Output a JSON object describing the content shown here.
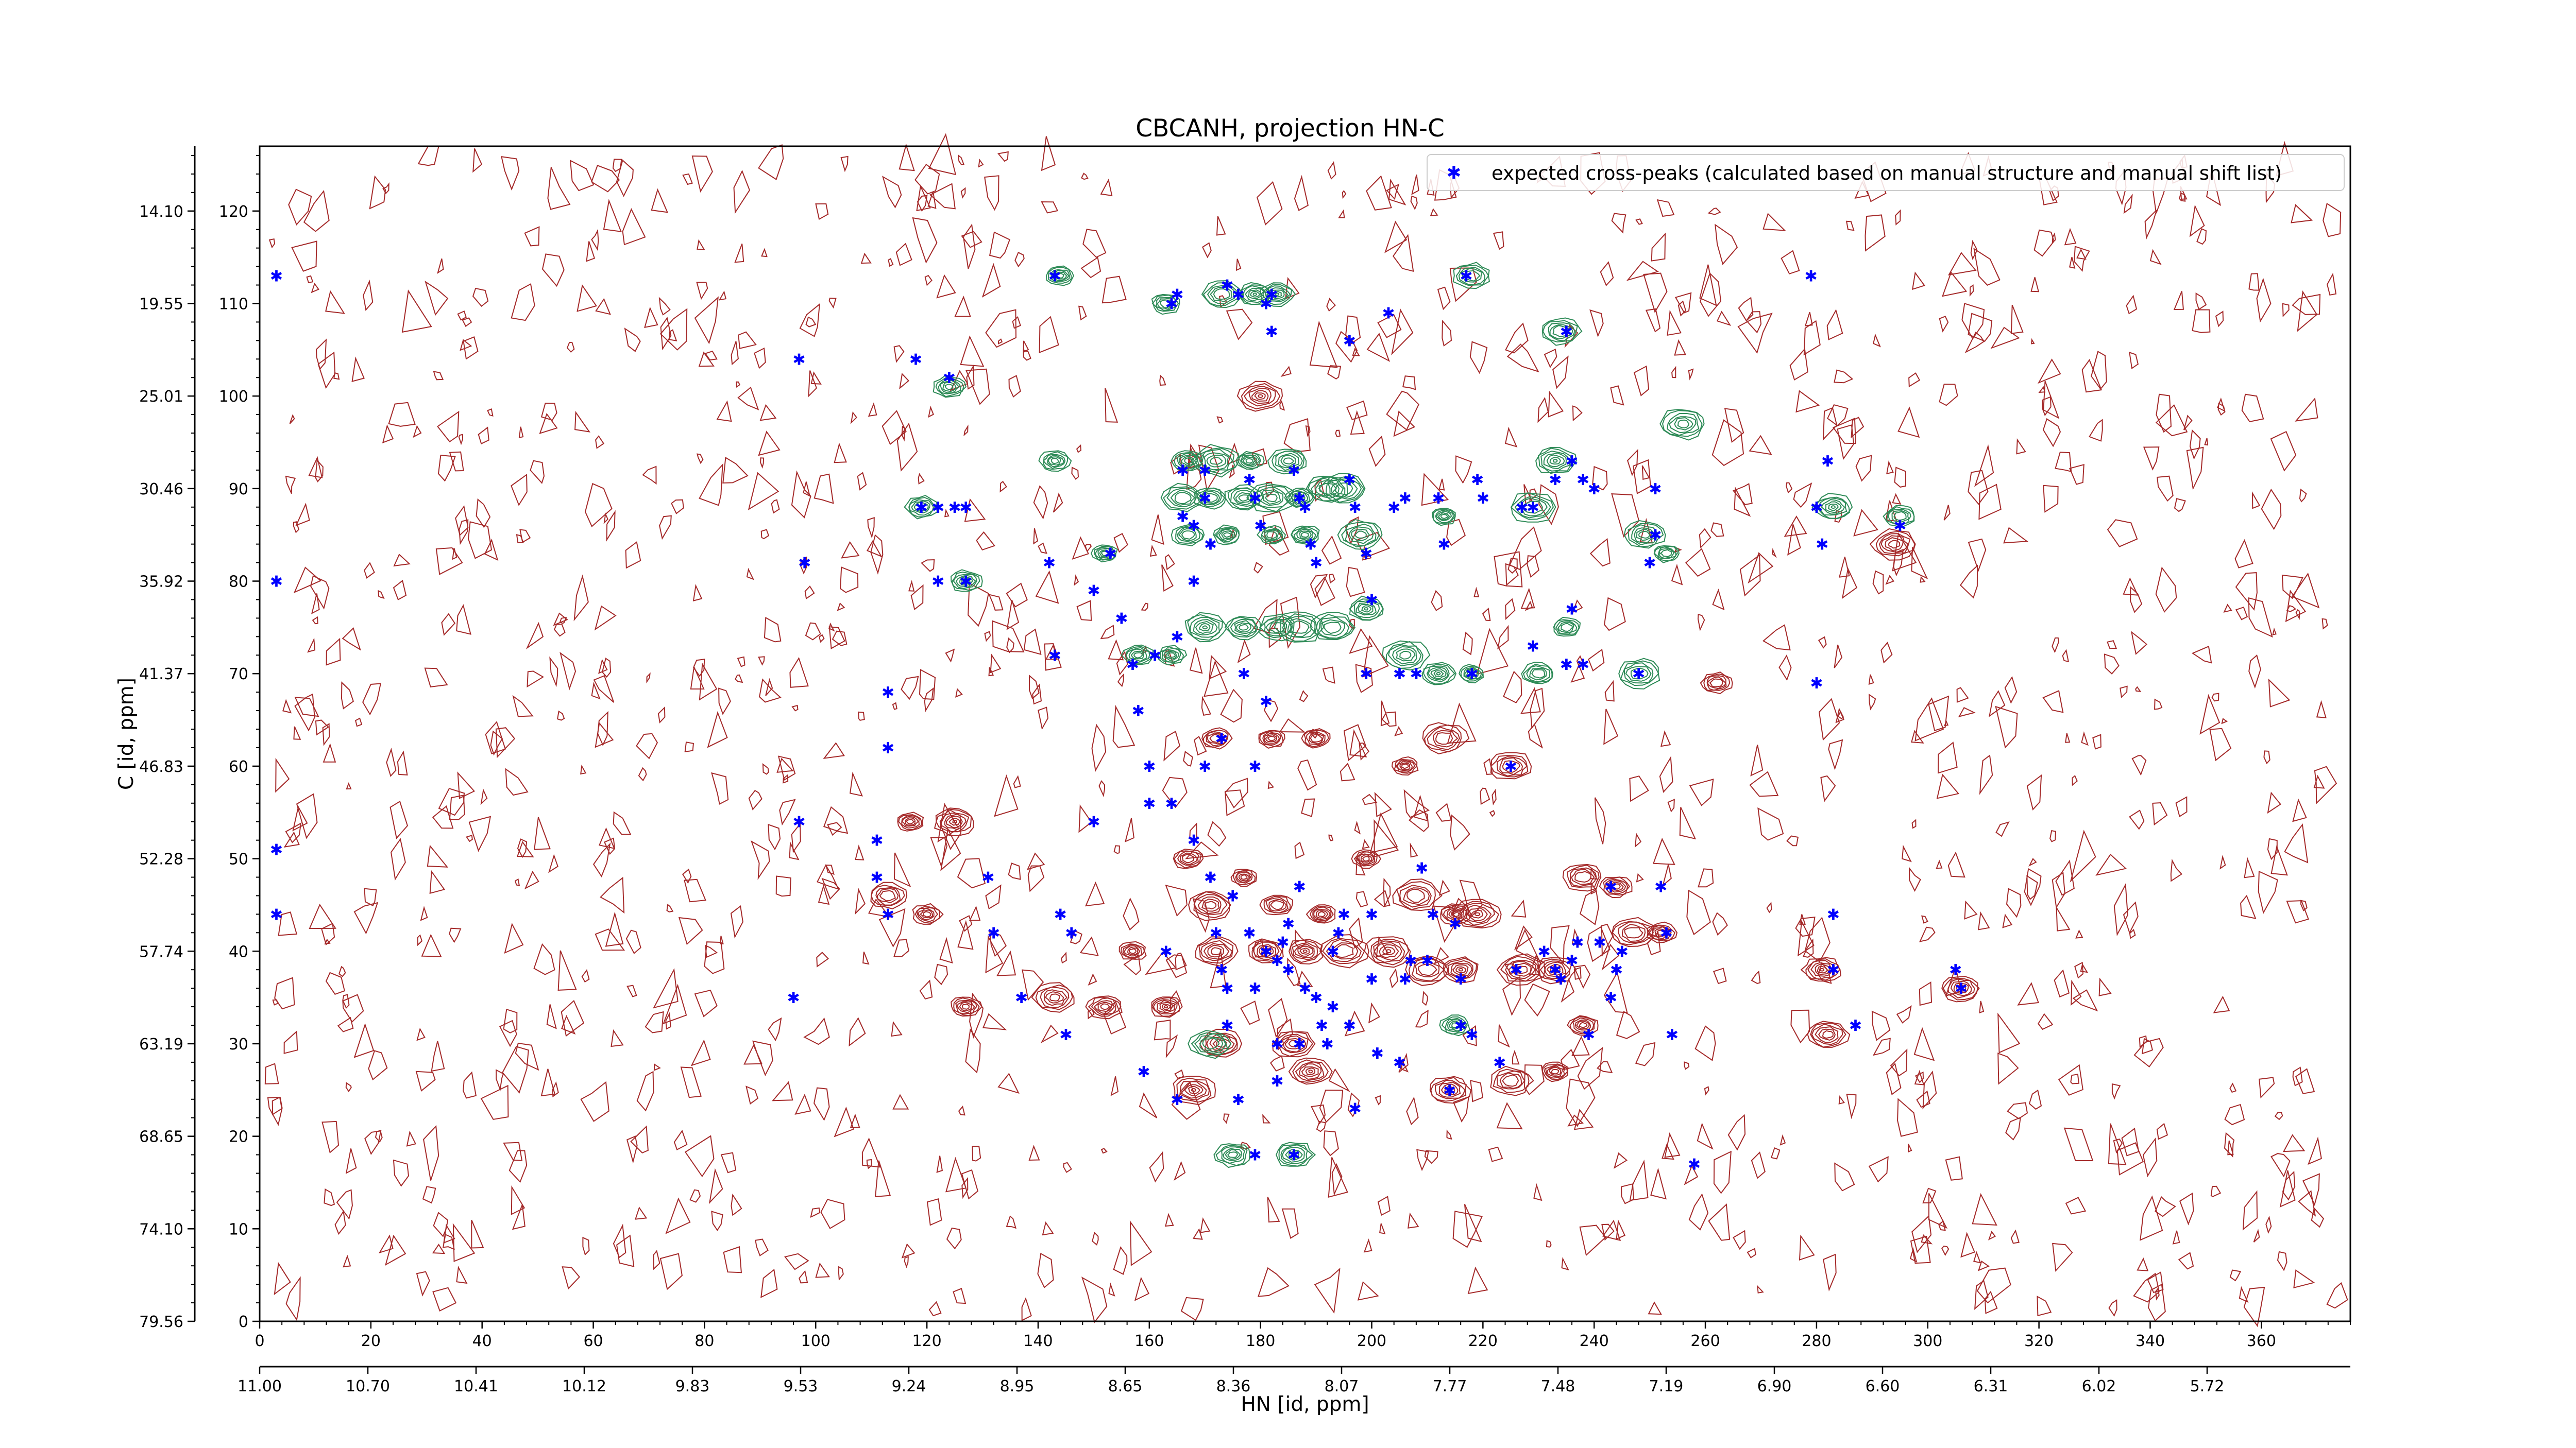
{
  "chart_data": {
    "type": "contour",
    "title": "CBCANH, projection HN-C",
    "xlabel": "HN [id, ppm]",
    "ylabel": "C [id, ppm]",
    "x_index_ticks": [
      "0",
      "20",
      "40",
      "60",
      "80",
      "100",
      "120",
      "140",
      "160",
      "180",
      "200",
      "220",
      "240",
      "260",
      "280",
      "300",
      "320",
      "340",
      "360"
    ],
    "x_ppm_ticks": [
      "11.00",
      "10.70",
      "10.41",
      "10.12",
      "9.83",
      "9.53",
      "9.24",
      "8.95",
      "8.65",
      "8.36",
      "8.07",
      "7.77",
      "7.48",
      "7.19",
      "6.90",
      "6.60",
      "6.31",
      "6.02",
      "5.72"
    ],
    "y_index_ticks": [
      "0",
      "10",
      "20",
      "30",
      "40",
      "50",
      "60",
      "70",
      "80",
      "90",
      "100",
      "110",
      "120"
    ],
    "y_ppm_ticks": [
      "79.56",
      "74.10",
      "68.65",
      "63.19",
      "57.74",
      "52.28",
      "46.83",
      "41.37",
      "35.92",
      "30.46",
      "25.01",
      "19.55",
      "14.10"
    ],
    "xlim": [
      0,
      376
    ],
    "ylim": [
      0,
      127
    ],
    "legend": {
      "label": "expected cross-peaks (calculated based on manual structure and manual shift list)",
      "placement": "upper-right"
    },
    "colors": {
      "negative_contours": "#a52a2a",
      "positive_contours": "#2e8b57",
      "markers": "#0000ff"
    },
    "positive_peaks": [
      [
        144,
        113
      ],
      [
        163,
        110
      ],
      [
        173,
        111
      ],
      [
        179,
        111
      ],
      [
        183,
        111
      ],
      [
        218,
        113
      ],
      [
        234,
        107
      ],
      [
        124,
        101
      ],
      [
        143,
        93
      ],
      [
        167,
        93
      ],
      [
        172,
        93
      ],
      [
        178,
        93
      ],
      [
        185,
        93
      ],
      [
        166,
        89
      ],
      [
        171,
        89
      ],
      [
        177,
        89
      ],
      [
        182,
        89
      ],
      [
        187,
        89
      ],
      [
        192,
        90
      ],
      [
        195,
        90
      ],
      [
        167,
        85
      ],
      [
        174,
        85
      ],
      [
        182,
        85
      ],
      [
        188,
        85
      ],
      [
        198,
        85
      ],
      [
        119,
        88
      ],
      [
        127,
        80
      ],
      [
        152,
        83
      ],
      [
        213,
        87
      ],
      [
        229,
        88
      ],
      [
        233,
        93
      ],
      [
        249,
        85
      ],
      [
        253,
        83
      ],
      [
        256,
        97
      ],
      [
        283,
        88
      ],
      [
        295,
        87
      ],
      [
        158,
        72
      ],
      [
        164,
        72
      ],
      [
        170,
        75
      ],
      [
        177,
        75
      ],
      [
        183,
        75
      ],
      [
        187,
        75
      ],
      [
        193,
        75
      ],
      [
        199,
        77
      ],
      [
        206,
        72
      ],
      [
        212,
        70
      ],
      [
        218,
        70
      ],
      [
        230,
        70
      ],
      [
        235,
        75
      ],
      [
        248,
        70
      ],
      [
        215,
        32
      ],
      [
        175,
        18
      ],
      [
        186,
        18
      ],
      [
        171,
        30
      ]
    ],
    "negative_peaks": [
      [
        180,
        100
      ],
      [
        172,
        63
      ],
      [
        182,
        63
      ],
      [
        190,
        63
      ],
      [
        206,
        60
      ],
      [
        213,
        63
      ],
      [
        225,
        60
      ],
      [
        117,
        54
      ],
      [
        125,
        54
      ],
      [
        113,
        46
      ],
      [
        120,
        44
      ],
      [
        127,
        34
      ],
      [
        143,
        35
      ],
      [
        152,
        34
      ],
      [
        163,
        34
      ],
      [
        173,
        30
      ],
      [
        186,
        30
      ],
      [
        167,
        50
      ],
      [
        171,
        45
      ],
      [
        177,
        48
      ],
      [
        183,
        45
      ],
      [
        191,
        44
      ],
      [
        199,
        50
      ],
      [
        208,
        46
      ],
      [
        215,
        44
      ],
      [
        219,
        44
      ],
      [
        172,
        40
      ],
      [
        181,
        40
      ],
      [
        188,
        40
      ],
      [
        195,
        40
      ],
      [
        203,
        40
      ],
      [
        210,
        38
      ],
      [
        216,
        38
      ],
      [
        227,
        38
      ],
      [
        233,
        38
      ],
      [
        238,
        48
      ],
      [
        233,
        27
      ],
      [
        225,
        26
      ],
      [
        247,
        42
      ],
      [
        252,
        42
      ],
      [
        281,
        38
      ],
      [
        306,
        36
      ],
      [
        282,
        31
      ],
      [
        262,
        69
      ],
      [
        294,
        84
      ],
      [
        168,
        25
      ],
      [
        189,
        27
      ],
      [
        214,
        25
      ],
      [
        244,
        47
      ],
      [
        238,
        32
      ],
      [
        157,
        40
      ]
    ],
    "expected_peaks": [
      [
        3,
        113
      ],
      [
        3,
        80
      ],
      [
        3,
        51
      ],
      [
        3,
        44
      ],
      [
        97,
        104
      ],
      [
        98,
        82
      ],
      [
        97,
        54
      ],
      [
        96,
        35
      ],
      [
        111,
        52
      ],
      [
        111,
        48
      ],
      [
        113,
        44
      ],
      [
        113,
        62
      ],
      [
        113,
        68
      ],
      [
        118,
        104
      ],
      [
        119,
        88
      ],
      [
        122,
        88
      ],
      [
        122,
        80
      ],
      [
        124,
        102
      ],
      [
        125,
        88
      ],
      [
        127,
        88
      ],
      [
        127,
        80
      ],
      [
        131,
        48
      ],
      [
        132,
        42
      ],
      [
        137,
        35
      ],
      [
        142,
        82
      ],
      [
        143,
        113
      ],
      [
        143,
        72
      ],
      [
        144,
        44
      ],
      [
        146,
        42
      ],
      [
        145,
        31
      ],
      [
        150,
        54
      ],
      [
        150,
        79
      ],
      [
        153,
        83
      ],
      [
        155,
        76
      ],
      [
        157,
        71
      ],
      [
        158,
        66
      ],
      [
        160,
        60
      ],
      [
        160,
        56
      ],
      [
        161,
        72
      ],
      [
        163,
        40
      ],
      [
        164,
        110
      ],
      [
        165,
        111
      ],
      [
        165,
        74
      ],
      [
        166,
        92
      ],
      [
        166,
        87
      ],
      [
        168,
        86
      ],
      [
        168,
        80
      ],
      [
        170,
        92
      ],
      [
        170,
        89
      ],
      [
        171,
        84
      ],
      [
        172,
        42
      ],
      [
        173,
        38
      ],
      [
        174,
        36
      ],
      [
        174,
        112
      ],
      [
        176,
        111
      ],
      [
        177,
        70
      ],
      [
        178,
        91
      ],
      [
        179,
        89
      ],
      [
        180,
        86
      ],
      [
        181,
        110
      ],
      [
        182,
        111
      ],
      [
        182,
        107
      ],
      [
        183,
        39
      ],
      [
        184,
        41
      ],
      [
        185,
        43
      ],
      [
        185,
        38
      ],
      [
        186,
        92
      ],
      [
        187,
        89
      ],
      [
        188,
        88
      ],
      [
        189,
        84
      ],
      [
        190,
        82
      ],
      [
        190,
        35
      ],
      [
        191,
        32
      ],
      [
        192,
        30
      ],
      [
        193,
        40
      ],
      [
        193,
        34
      ],
      [
        194,
        42
      ],
      [
        195,
        44
      ],
      [
        196,
        106
      ],
      [
        196,
        91
      ],
      [
        197,
        88
      ],
      [
        199,
        83
      ],
      [
        199,
        70
      ],
      [
        200,
        78
      ],
      [
        200,
        37
      ],
      [
        201,
        29
      ],
      [
        203,
        109
      ],
      [
        204,
        88
      ],
      [
        205,
        70
      ],
      [
        206,
        89
      ],
      [
        206,
        37
      ],
      [
        207,
        39
      ],
      [
        208,
        70
      ],
      [
        209,
        49
      ],
      [
        210,
        39
      ],
      [
        211,
        44
      ],
      [
        212,
        89
      ],
      [
        213,
        84
      ],
      [
        215,
        43
      ],
      [
        216,
        37
      ],
      [
        216,
        32
      ],
      [
        217,
        113
      ],
      [
        218,
        70
      ],
      [
        219,
        91
      ],
      [
        220,
        89
      ],
      [
        223,
        28
      ],
      [
        225,
        60
      ],
      [
        226,
        38
      ],
      [
        227,
        88
      ],
      [
        229,
        88
      ],
      [
        229,
        73
      ],
      [
        231,
        40
      ],
      [
        233,
        91
      ],
      [
        233,
        38
      ],
      [
        234,
        37
      ],
      [
        235,
        71
      ],
      [
        235,
        107
      ],
      [
        236,
        93
      ],
      [
        236,
        77
      ],
      [
        236,
        39
      ],
      [
        237,
        41
      ],
      [
        238,
        91
      ],
      [
        238,
        71
      ],
      [
        239,
        31
      ],
      [
        240,
        90
      ],
      [
        241,
        41
      ],
      [
        243,
        47
      ],
      [
        243,
        35
      ],
      [
        244,
        38
      ],
      [
        245,
        40
      ],
      [
        248,
        70
      ],
      [
        250,
        82
      ],
      [
        251,
        85
      ],
      [
        251,
        90
      ],
      [
        252,
        47
      ],
      [
        253,
        42
      ],
      [
        254,
        31
      ],
      [
        258,
        17
      ],
      [
        279,
        113
      ],
      [
        280,
        88
      ],
      [
        280,
        69
      ],
      [
        281,
        84
      ],
      [
        282,
        93
      ],
      [
        283,
        44
      ],
      [
        283,
        38
      ],
      [
        287,
        32
      ],
      [
        295,
        86
      ],
      [
        305,
        38
      ],
      [
        306,
        36
      ],
      [
        179,
        60
      ],
      [
        181,
        67
      ],
      [
        170,
        60
      ],
      [
        173,
        63
      ],
      [
        164,
        56
      ],
      [
        168,
        52
      ],
      [
        171,
        48
      ],
      [
        175,
        46
      ],
      [
        178,
        42
      ],
      [
        181,
        40
      ],
      [
        187,
        47
      ],
      [
        179,
        36
      ],
      [
        174,
        32
      ],
      [
        183,
        30
      ],
      [
        188,
        36
      ],
      [
        196,
        32
      ],
      [
        205,
        28
      ],
      [
        214,
        25
      ],
      [
        218,
        31
      ],
      [
        186,
        18
      ],
      [
        179,
        18
      ],
      [
        197,
        23
      ],
      [
        159,
        27
      ],
      [
        165,
        24
      ],
      [
        176,
        24
      ],
      [
        183,
        26
      ],
      [
        187,
        30
      ],
      [
        200,
        44
      ]
    ]
  }
}
